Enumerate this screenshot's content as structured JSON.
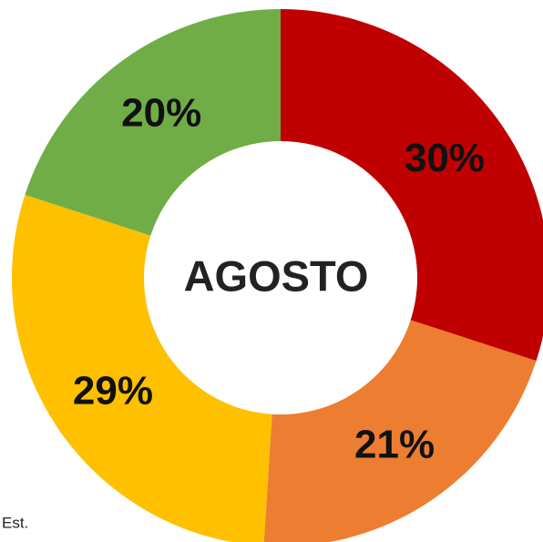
{
  "chart_data": {
    "type": "donut",
    "center_label": "AGOSTO",
    "note": "Est.",
    "categories": [
      null,
      null,
      null,
      null
    ],
    "values": [
      30,
      21,
      29,
      20
    ],
    "value_labels": [
      "30%",
      "21%",
      "29%",
      "20%"
    ],
    "colors": [
      "#c00000",
      "#ed7d31",
      "#ffc000",
      "#70ad47"
    ]
  }
}
